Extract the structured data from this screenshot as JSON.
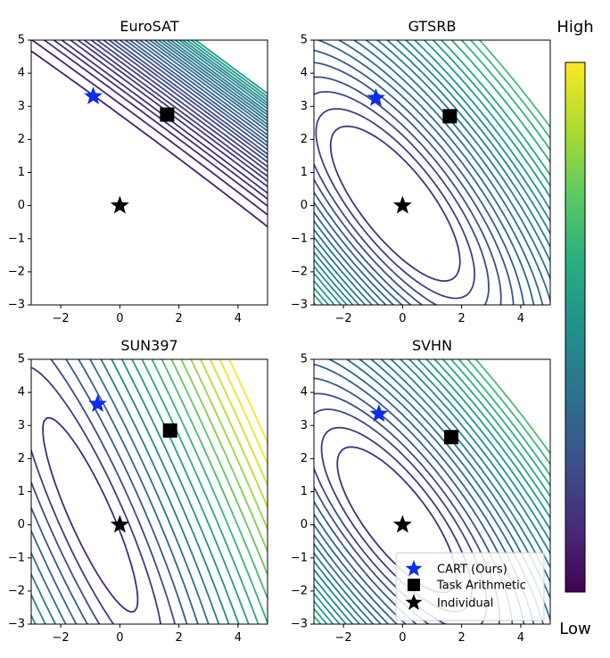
{
  "chart_data": {
    "type": "contour",
    "panels": [
      {
        "title": "EuroSAT",
        "xlim": [
          -3,
          5
        ],
        "ylim": [
          -3,
          5
        ],
        "xticks": [
          -2,
          0,
          2,
          4
        ],
        "yticks": [
          -3,
          -2,
          -1,
          0,
          1,
          2,
          3,
          4,
          5
        ],
        "markers": {
          "cart": [
            -0.9,
            3.3
          ],
          "task_arithmetic": [
            1.6,
            2.75
          ],
          "individual": [
            0,
            0
          ]
        }
      },
      {
        "title": "GTSRB",
        "xlim": [
          -3,
          5
        ],
        "ylim": [
          -3,
          5
        ],
        "xticks": [
          -2,
          0,
          2,
          4
        ],
        "yticks": [
          -3,
          -2,
          -1,
          0,
          1,
          2,
          3,
          4,
          5
        ],
        "markers": {
          "cart": [
            -0.9,
            3.25
          ],
          "task_arithmetic": [
            1.6,
            2.7
          ],
          "individual": [
            0,
            0
          ]
        }
      },
      {
        "title": "SUN397",
        "xlim": [
          -3,
          5
        ],
        "ylim": [
          -3,
          5
        ],
        "xticks": [
          -2,
          0,
          2,
          4
        ],
        "yticks": [
          -3,
          -2,
          -1,
          0,
          1,
          2,
          3,
          4,
          5
        ],
        "markers": {
          "cart": [
            -0.75,
            3.65
          ],
          "task_arithmetic": [
            1.7,
            2.85
          ],
          "individual": [
            0,
            0
          ]
        }
      },
      {
        "title": "SVHN",
        "xlim": [
          -3,
          5
        ],
        "ylim": [
          -3,
          5
        ],
        "xticks": [
          -2,
          0,
          2,
          4
        ],
        "yticks": [
          -3,
          -2,
          -1,
          0,
          1,
          2,
          3,
          4,
          5
        ],
        "markers": {
          "cart": [
            -0.8,
            3.35
          ],
          "task_arithmetic": [
            1.65,
            2.65
          ],
          "individual": [
            0,
            0
          ]
        }
      }
    ],
    "legend": {
      "placement": "lower-right of SVHN panel",
      "entries": [
        "CART (Ours)",
        "Task Arithmetic",
        "Individual"
      ]
    },
    "colorbar": {
      "colormap": "viridis",
      "top_label": "High",
      "bottom_label": "Low"
    },
    "colors": {
      "cart": "#0a2cf0",
      "task_arithmetic": "#000000",
      "individual": "#000000"
    }
  }
}
